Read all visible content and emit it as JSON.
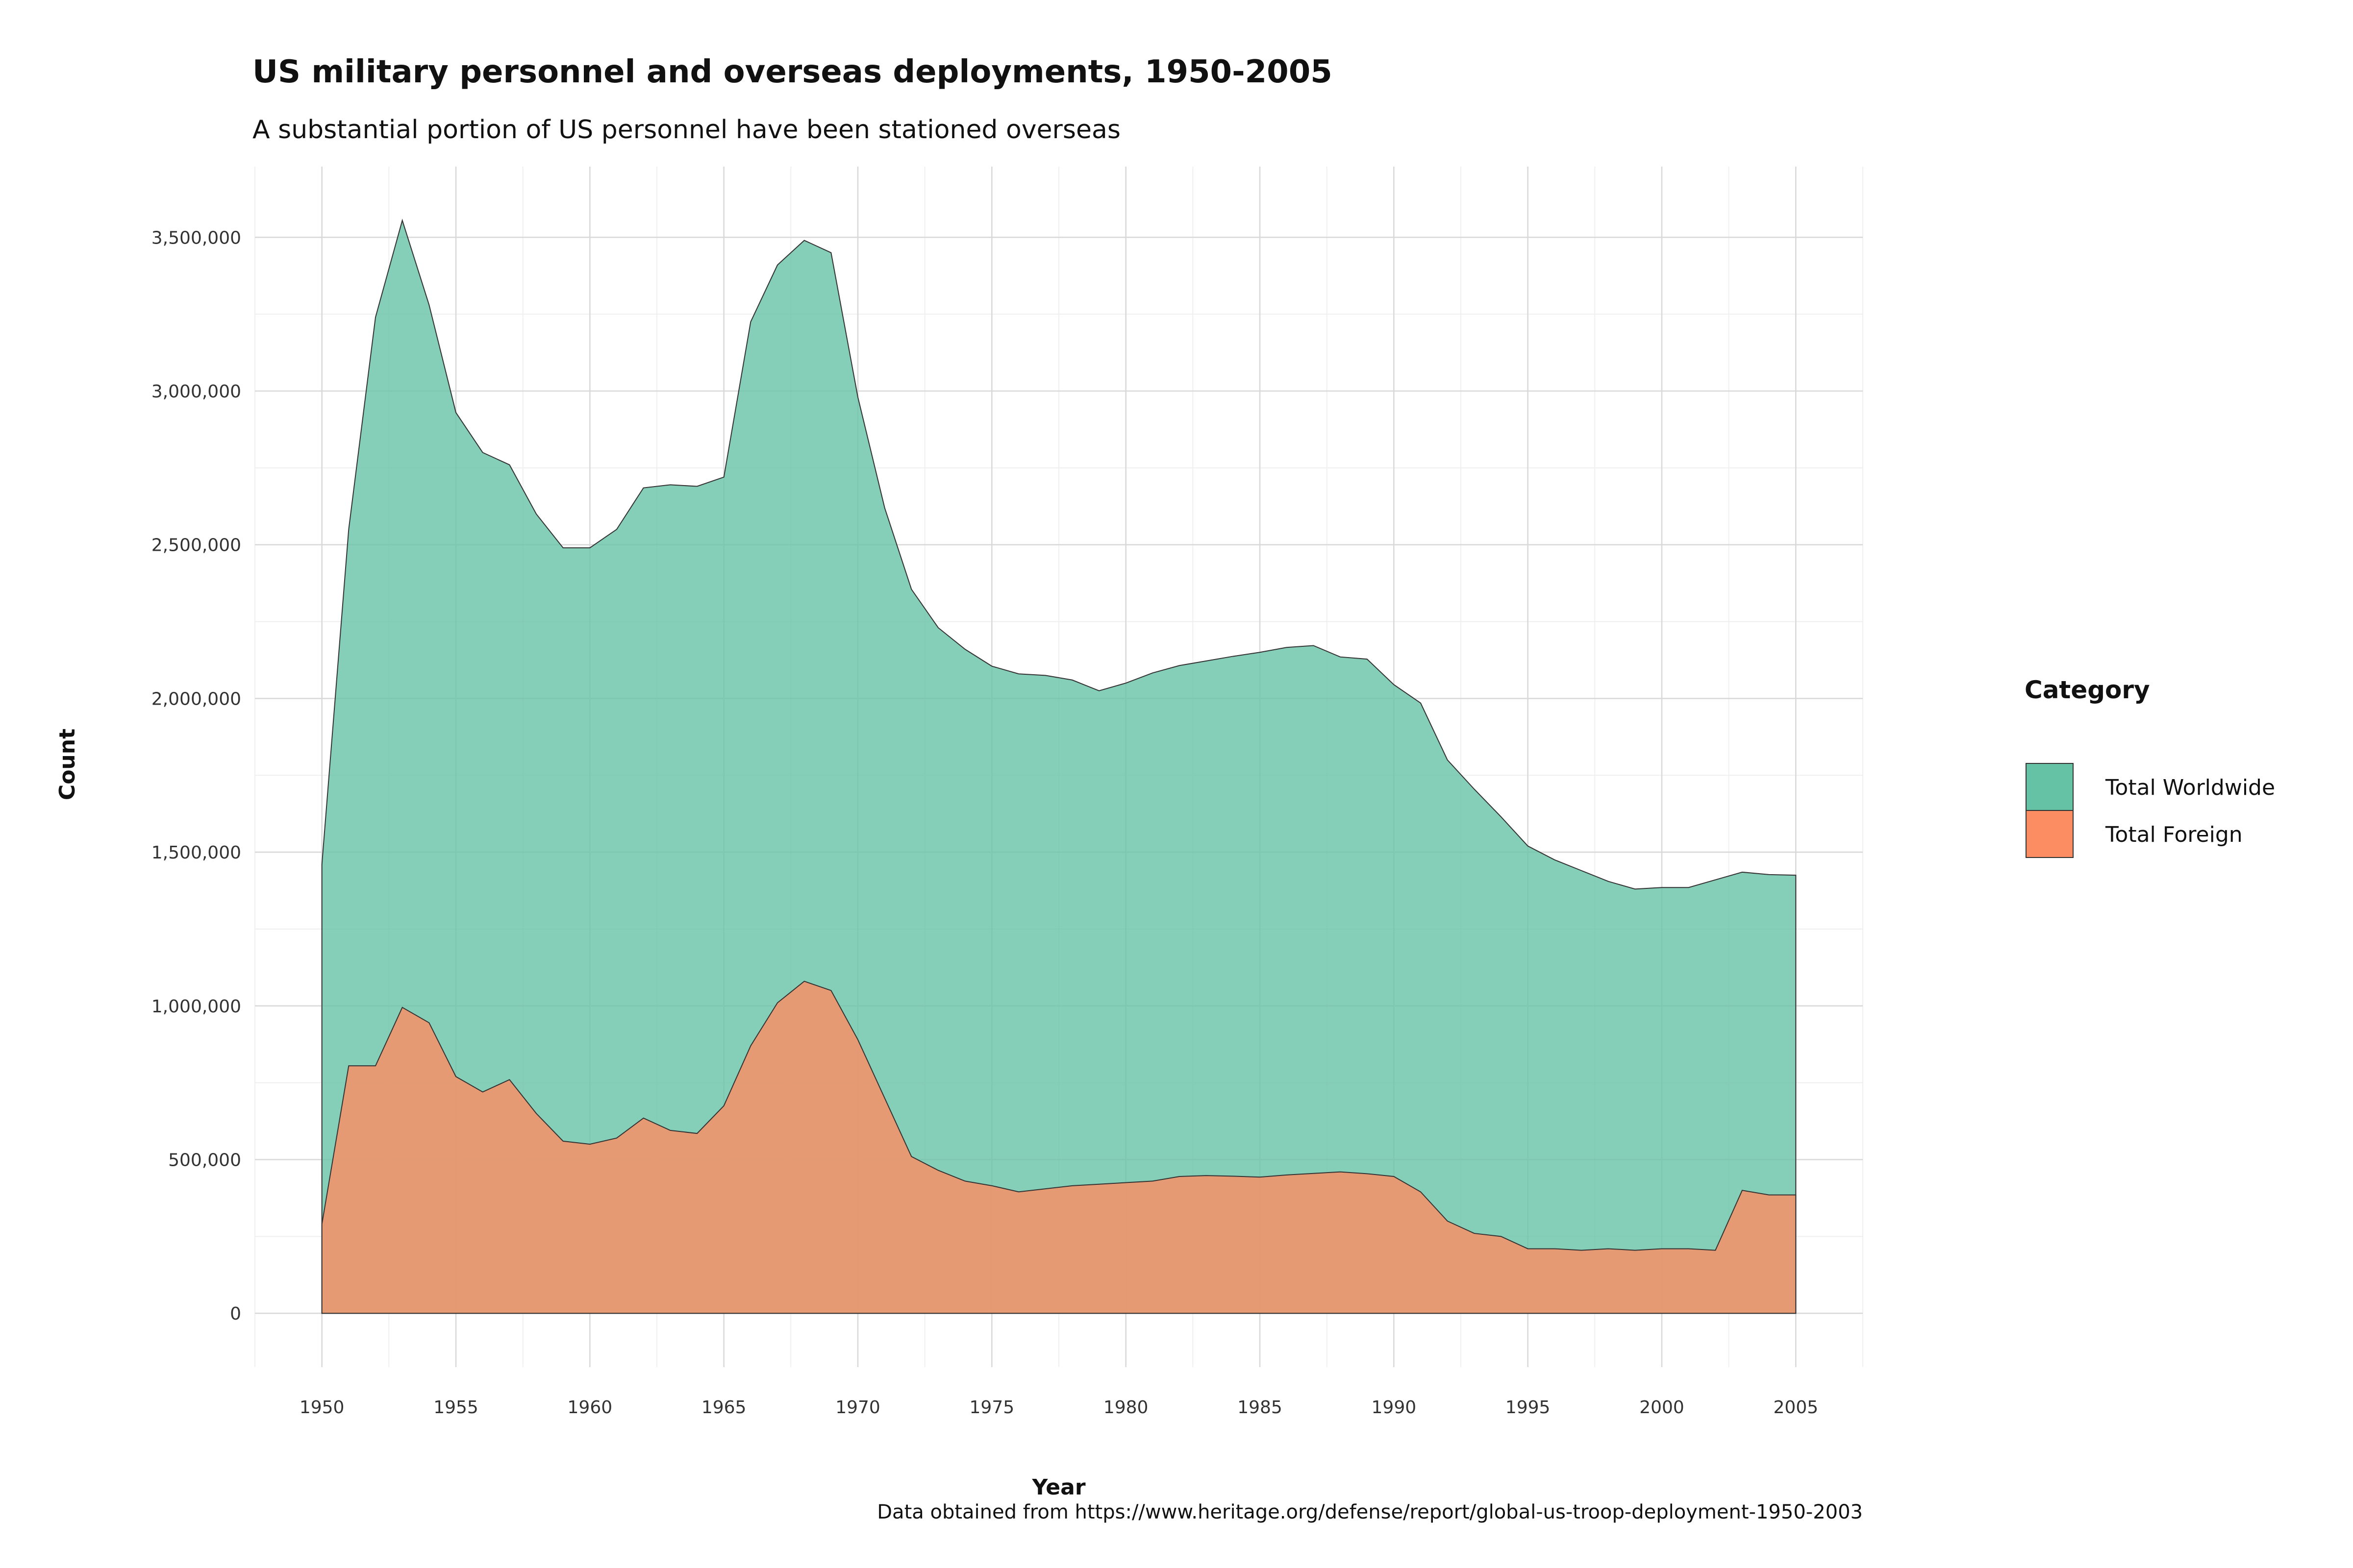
{
  "colors": {
    "total_worldwide": "#66c2a5",
    "total_foreign": "#fc8d62",
    "outline": "#333333"
  },
  "chart_data": {
    "type": "area",
    "title": "US military personnel and overseas deployments, 1950-2005",
    "subtitle": "A substantial portion of US personnel have been stationed overseas",
    "xlabel": "Year",
    "ylabel": "Count",
    "caption": "Data obtained from https://www.heritage.org/defense/report/global-us-troop-deployment-1950-2003",
    "xlim": [
      1947.5,
      2007.5
    ],
    "ylim": [
      -175000,
      3730000
    ],
    "x_ticks": [
      1950,
      1955,
      1960,
      1965,
      1970,
      1975,
      1980,
      1985,
      1990,
      1995,
      2000,
      2005
    ],
    "y_ticks": [
      {
        "value": 0,
        "label": "0"
      },
      {
        "value": 500000,
        "label": "500,000"
      },
      {
        "value": 1000000,
        "label": "1,000,000"
      },
      {
        "value": 1500000,
        "label": "1,500,000"
      },
      {
        "value": 2000000,
        "label": "2,000,000"
      },
      {
        "value": 2500000,
        "label": "2,500,000"
      },
      {
        "value": 3000000,
        "label": "3,000,000"
      },
      {
        "value": 3500000,
        "label": "3,500,000"
      }
    ],
    "grid": true,
    "legend_title": "Category",
    "legend_position": "right",
    "x": [
      1950,
      1951,
      1952,
      1953,
      1954,
      1955,
      1956,
      1957,
      1958,
      1959,
      1960,
      1961,
      1962,
      1963,
      1964,
      1965,
      1966,
      1967,
      1968,
      1969,
      1970,
      1971,
      1972,
      1973,
      1974,
      1975,
      1976,
      1977,
      1978,
      1979,
      1980,
      1981,
      1982,
      1983,
      1984,
      1985,
      1986,
      1987,
      1988,
      1989,
      1990,
      1991,
      1992,
      1993,
      1994,
      1995,
      1996,
      1997,
      1998,
      1999,
      2000,
      2001,
      2002,
      2003,
      2004,
      2005
    ],
    "series": [
      {
        "name": "Total Worldwide",
        "values": [
          1460000,
          2550000,
          3240000,
          3555000,
          3280000,
          2930000,
          2800000,
          2760000,
          2600000,
          2490000,
          2490000,
          2550000,
          2685000,
          2695000,
          2690000,
          2720000,
          3225000,
          3410000,
          3490000,
          3450000,
          2980000,
          2620000,
          2355000,
          2230000,
          2160000,
          2105000,
          2080000,
          2075000,
          2060000,
          2025000,
          2050000,
          2083000,
          2107000,
          2122000,
          2137000,
          2150000,
          2166000,
          2172000,
          2135000,
          2128000,
          2045000,
          1985000,
          1800000,
          1705000,
          1615000,
          1520000,
          1475000,
          1440000,
          1405000,
          1380000,
          1385000,
          1385000,
          1410000,
          1435000,
          1427000,
          1425000
        ],
        "color_key": "total_worldwide"
      },
      {
        "name": "Total Foreign",
        "values": [
          290000,
          805000,
          805000,
          995000,
          945000,
          770000,
          720000,
          760000,
          650000,
          560000,
          550000,
          570000,
          635000,
          595000,
          585000,
          675000,
          870000,
          1010000,
          1080000,
          1050000,
          890000,
          700000,
          510000,
          465000,
          430000,
          415000,
          395000,
          405000,
          415000,
          420000,
          425000,
          430000,
          445000,
          448000,
          446000,
          443000,
          450000,
          455000,
          460000,
          454000,
          445000,
          395000,
          300000,
          260000,
          250000,
          210000,
          210000,
          205000,
          210000,
          205000,
          210000,
          210000,
          205000,
          400000,
          385000,
          385000
        ],
        "color_key": "total_foreign"
      }
    ]
  }
}
